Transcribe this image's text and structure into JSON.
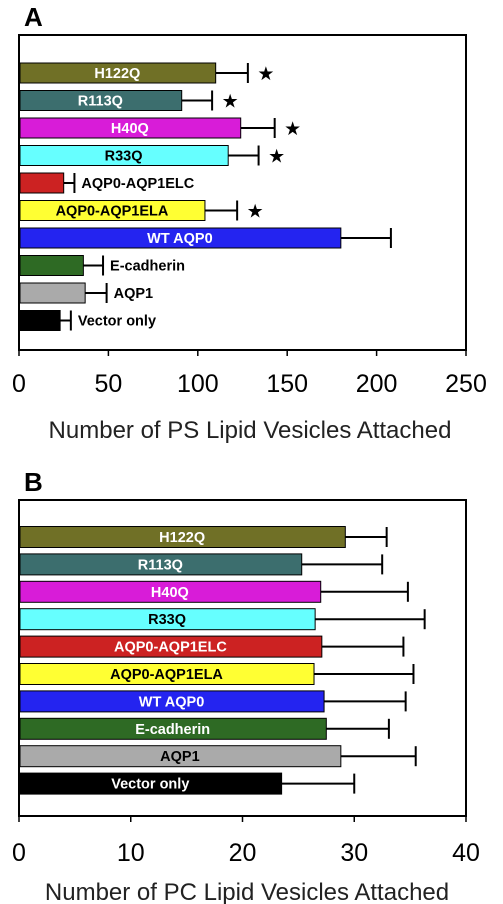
{
  "chart_data": [
    {
      "panel": "A",
      "type": "bar",
      "orientation": "horizontal",
      "xlabel": "Number of PS Lipid Vesicles Attached",
      "xlim": [
        0,
        250
      ],
      "xticks": [
        "0",
        "50",
        "100",
        "150",
        "200",
        "250"
      ],
      "grid": false,
      "legend": "none",
      "categories": [
        "H122Q",
        "R113Q",
        "H40Q",
        "R33Q",
        "AQP0-AQP1ELC",
        "AQP0-AQP1ELA",
        "WT AQP0",
        "E-cadherin",
        "AQP1",
        "Vector only"
      ],
      "values": [
        110,
        91,
        124,
        117,
        25,
        104,
        180,
        36,
        37,
        23
      ],
      "errors": [
        18,
        17,
        19,
        17,
        6,
        18,
        28,
        11,
        12,
        6
      ],
      "significance": [
        true,
        true,
        true,
        true,
        false,
        true,
        false,
        false,
        false,
        false
      ],
      "label_position": [
        "inside",
        "inside",
        "inside",
        "inside",
        "outside",
        "inside",
        "inside",
        "outside",
        "outside",
        "outside"
      ],
      "significance_marker": "★",
      "colors": [
        "#707026",
        "#3c6e6e",
        "#d81cd8",
        "#66ffff",
        "#cc2222",
        "#ffff33",
        "#2424f0",
        "#2e6a24",
        "#aaaaaa",
        "#000000"
      ]
    },
    {
      "panel": "B",
      "type": "bar",
      "orientation": "horizontal",
      "xlabel": "Number of PC Lipid Vesicles Attached",
      "xlim": [
        0,
        40
      ],
      "xticks": [
        "0",
        "10",
        "20",
        "30",
        "40"
      ],
      "grid": false,
      "legend": "none",
      "categories": [
        "H122Q",
        "R113Q",
        "H40Q",
        "R33Q",
        "AQP0-AQP1ELC",
        "AQP0-AQP1ELA",
        "WT AQP0",
        "E-cadherin",
        "AQP1",
        "Vector only"
      ],
      "values": [
        29.2,
        25.3,
        27,
        26.5,
        27.1,
        26.4,
        27.3,
        27.5,
        28.8,
        23.5
      ],
      "errors": [
        3.7,
        7.2,
        7.8,
        9.8,
        7.3,
        8.9,
        7.3,
        5.6,
        6.7,
        6.5
      ],
      "label_position": [
        "inside",
        "inside",
        "inside",
        "inside",
        "inside",
        "inside",
        "inside",
        "inside",
        "inside",
        "inside"
      ],
      "colors": [
        "#707026",
        "#3c6e6e",
        "#d81cd8",
        "#66ffff",
        "#cc2222",
        "#ffff33",
        "#2424f0",
        "#2e6a24",
        "#aaaaaa",
        "#000000"
      ]
    }
  ]
}
